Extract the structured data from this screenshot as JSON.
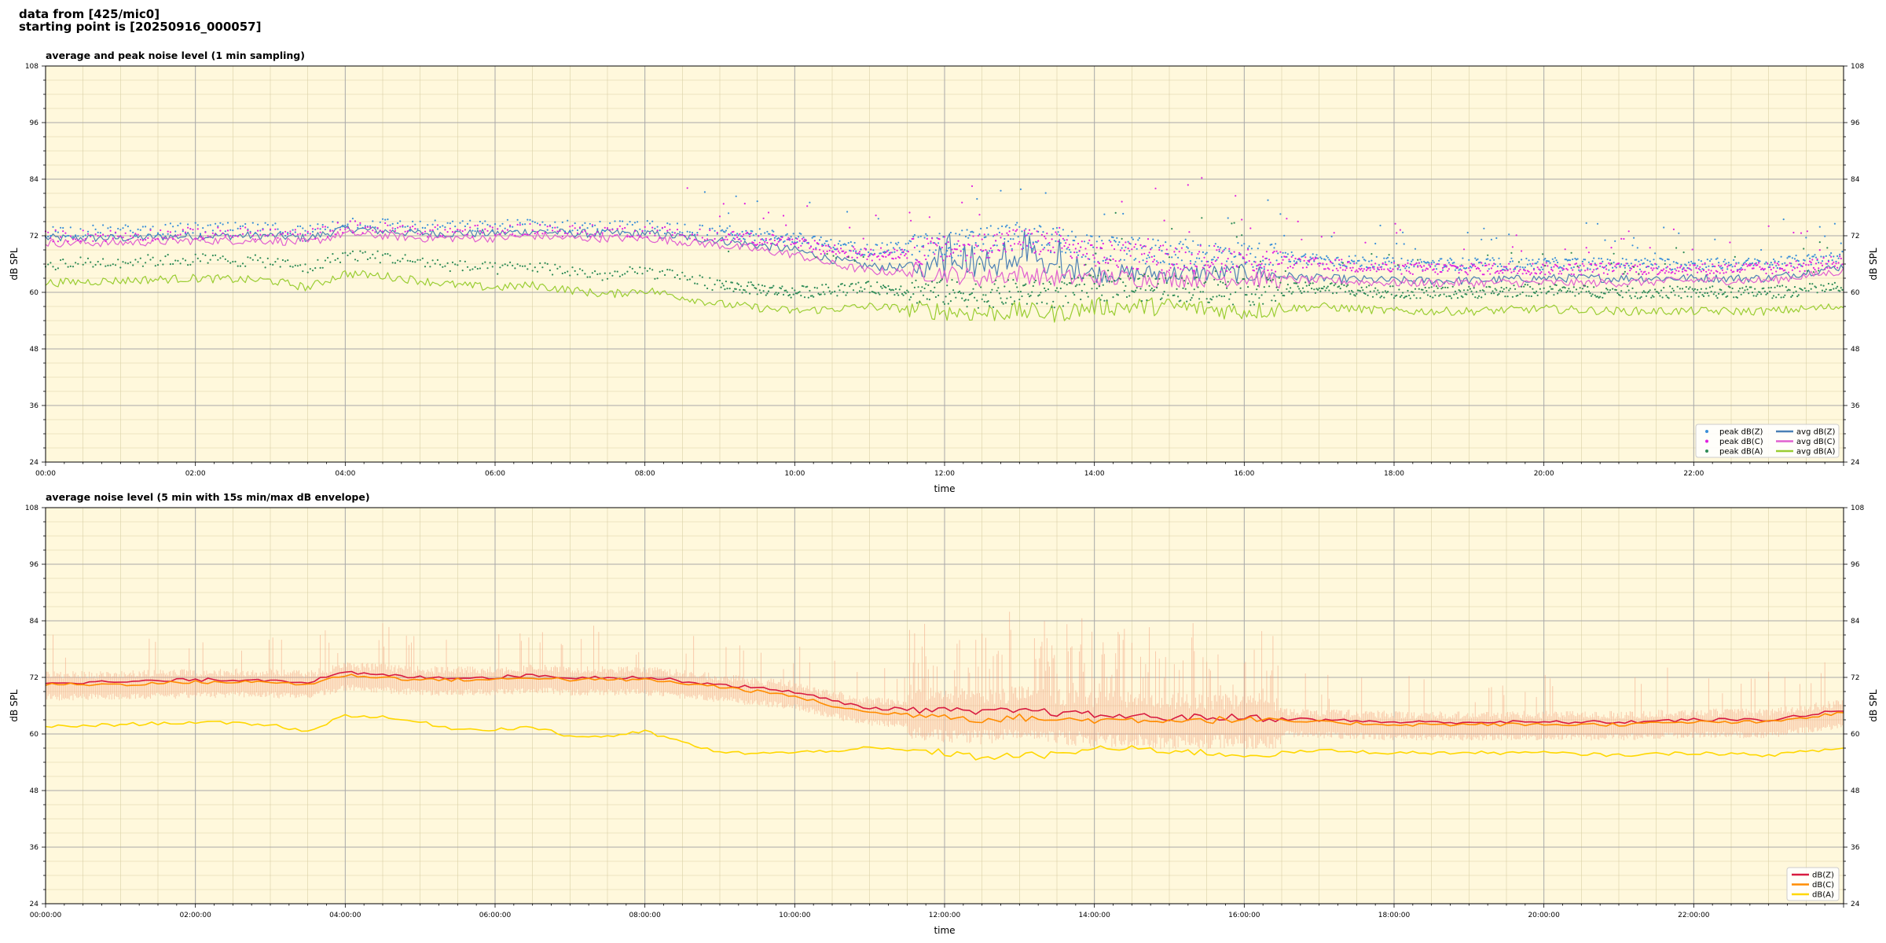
{
  "header": {
    "line1": "data from [425/mic0]",
    "line2": "starting point is [20250916_000057]"
  },
  "chart_data": [
    {
      "type": "line",
      "title": "average and peak noise level (1 min sampling)",
      "xlabel": "time",
      "ylabel": "dB SPL",
      "ylim": [
        24,
        108
      ],
      "yticks": [
        24,
        36,
        48,
        60,
        72,
        84,
        96,
        108
      ],
      "xlim_hours": [
        0,
        24
      ],
      "xtick_labels": [
        "00:00",
        "02:00",
        "04:00",
        "06:00",
        "08:00",
        "10:00",
        "12:00",
        "14:00",
        "16:00",
        "18:00",
        "20:00",
        "22:00"
      ],
      "grid": true,
      "legend_position": "bottom-right",
      "background": "#fff8dc",
      "x_hours": [
        0,
        1,
        2,
        3,
        3.5,
        4,
        4.5,
        5,
        5.5,
        6,
        6.5,
        7,
        7.5,
        8,
        9,
        10,
        10.5,
        11,
        12,
        12.5,
        13,
        13.5,
        14,
        15,
        16,
        17,
        18,
        19,
        20,
        21,
        22,
        23,
        24
      ],
      "series": [
        {
          "name": "avg dB(Z)",
          "style": "line",
          "color": "#4a7fb5",
          "values": [
            71.5,
            71.5,
            72,
            72,
            71.5,
            73.5,
            73,
            72.5,
            72.5,
            72.5,
            73,
            72.5,
            72.5,
            72.5,
            71,
            69,
            67,
            65.5,
            65,
            65,
            66,
            65,
            64,
            64,
            64,
            63,
            62.5,
            62.5,
            63,
            63,
            63,
            63,
            65.5
          ]
        },
        {
          "name": "avg dB(C)",
          "style": "line",
          "color": "#e060d0",
          "values": [
            70.5,
            70.5,
            71,
            71,
            70.5,
            72.5,
            72,
            71.5,
            71.5,
            71.5,
            72,
            71.5,
            71.5,
            71.5,
            70,
            68,
            66,
            64.5,
            64,
            63,
            64,
            63,
            63,
            63,
            63,
            62.5,
            62,
            62,
            62,
            62,
            62.5,
            62.5,
            64.5
          ]
        },
        {
          "name": "avg dB(A)",
          "style": "line",
          "color": "#9acd32",
          "values": [
            62,
            62.5,
            63,
            62.5,
            61,
            64,
            63.5,
            62.5,
            61.5,
            61,
            61.5,
            60.5,
            59.5,
            60.5,
            57.5,
            56,
            56.5,
            57,
            56,
            55.5,
            56,
            55.5,
            57,
            57,
            56,
            57,
            56,
            56,
            56.5,
            56,
            56,
            56,
            57
          ]
        },
        {
          "name": "peak dB(Z)",
          "style": "scatter",
          "color": "#3a8fd9",
          "values": [
            73,
            73,
            73.5,
            73.5,
            73,
            75,
            74.5,
            74,
            74,
            74,
            74.5,
            74,
            74,
            74,
            73,
            71.5,
            70,
            69,
            70,
            71,
            72,
            71,
            69,
            68.5,
            68,
            67,
            66,
            66,
            66,
            66,
            66,
            66,
            67.5
          ]
        },
        {
          "name": "peak dB(C)",
          "style": "scatter",
          "color": "#e020e0",
          "values": [
            72,
            72,
            72.5,
            72.5,
            72,
            74,
            73.5,
            73,
            73,
            73,
            73.5,
            73,
            73,
            73,
            72,
            70.5,
            69,
            68,
            69,
            70,
            71,
            70,
            68,
            67.5,
            67,
            66,
            65,
            65,
            65,
            65,
            65,
            65,
            66.5
          ]
        },
        {
          "name": "peak dB(A)",
          "style": "scatter",
          "color": "#2e8b57",
          "values": [
            66,
            66.5,
            67,
            66.5,
            65,
            68,
            67.5,
            66.5,
            65.5,
            65,
            65.5,
            64.5,
            63.5,
            64.5,
            61.5,
            60,
            60.5,
            61,
            60,
            59.5,
            60,
            59.5,
            61,
            61,
            60,
            61,
            60,
            60,
            60.5,
            60,
            60,
            60,
            61
          ]
        }
      ]
    },
    {
      "type": "line",
      "title": "average noise level (5 min with 15s min/max dB envelope)",
      "xlabel": "time",
      "ylabel": "dB SPL",
      "ylim": [
        24,
        108
      ],
      "yticks": [
        24,
        36,
        48,
        60,
        72,
        84,
        96,
        108
      ],
      "xlim_hours": [
        0,
        24
      ],
      "xtick_labels": [
        "00:00:00",
        "02:00:00",
        "04:00:00",
        "06:00:00",
        "08:00:00",
        "10:00:00",
        "12:00:00",
        "14:00:00",
        "16:00:00",
        "18:00:00",
        "20:00:00",
        "22:00:00"
      ],
      "grid": true,
      "legend_position": "bottom-right",
      "background": "#fff8dc",
      "envelope_color": "#f4a582",
      "x_hours": [
        0,
        1,
        2,
        3,
        3.5,
        4,
        4.5,
        5,
        5.5,
        6,
        6.5,
        7,
        7.5,
        8,
        9,
        10,
        10.5,
        11,
        12,
        12.5,
        13,
        13.5,
        14,
        15,
        16,
        17,
        18,
        19,
        20,
        21,
        22,
        23,
        24
      ],
      "series": [
        {
          "name": "dB(Z)",
          "color": "#d81b40",
          "values": [
            71,
            71,
            71.5,
            71.5,
            71,
            73,
            72.5,
            72,
            72,
            72,
            72.5,
            72,
            72,
            72,
            70.5,
            69,
            67,
            65.5,
            65,
            64.5,
            65,
            64.5,
            64,
            63.5,
            63.5,
            63,
            62.5,
            62.5,
            62.5,
            62.5,
            63,
            63,
            65
          ]
        },
        {
          "name": "dB(C)",
          "color": "#ff8c00",
          "values": [
            70.5,
            70.5,
            71,
            71,
            70.5,
            72.5,
            72,
            71.5,
            71.5,
            71.5,
            72,
            71.5,
            71.5,
            71.5,
            70,
            68,
            66,
            64.5,
            64,
            63,
            63.5,
            63,
            63,
            63,
            63,
            62.5,
            62,
            62,
            62,
            62,
            62.5,
            62.5,
            64.5
          ]
        },
        {
          "name": "dB(A)",
          "color": "#ffd700",
          "values": [
            61.5,
            62,
            62.5,
            62,
            60.5,
            64,
            63.5,
            62.5,
            61,
            61,
            61.5,
            59.5,
            59.5,
            60.5,
            56,
            56,
            56.5,
            57,
            56,
            55,
            55.5,
            55.5,
            57,
            56.5,
            55.5,
            56.5,
            56,
            56,
            56,
            55.5,
            56,
            55.5,
            57
          ]
        }
      ]
    }
  ]
}
